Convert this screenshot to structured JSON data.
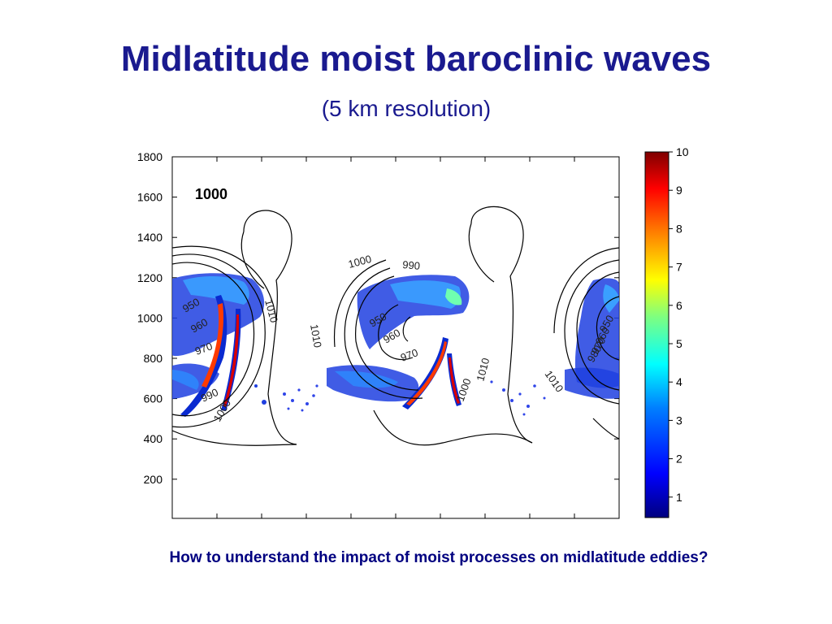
{
  "slide": {
    "title": "Midlatitude moist baroclinic waves",
    "subtitle": "(5 km resolution)",
    "caption": "How to understand the impact of moist processes on midlatitude eddies?"
  },
  "figure": {
    "panel_label": "1000",
    "y_ticks": [
      "1800",
      "1600",
      "1400",
      "1200",
      "1000",
      "800",
      "600",
      "400",
      "200"
    ],
    "colorbar_ticks": [
      "10",
      "9",
      "8",
      "7",
      "6",
      "5",
      "4",
      "3",
      "2",
      "1"
    ],
    "contour_labels": [
      "950",
      "960",
      "970",
      "990",
      "1000",
      "1010",
      "1000",
      "990",
      "1010",
      "950",
      "960",
      "970",
      "1000",
      "1010",
      "1010",
      "950",
      "960",
      "970",
      "980"
    ],
    "colorbar_colors": [
      "#00007f",
      "#0000ff",
      "#007fff",
      "#00ffff",
      "#7fff7f",
      "#ffff00",
      "#ff7f00",
      "#ff0000",
      "#7f0000"
    ]
  }
}
